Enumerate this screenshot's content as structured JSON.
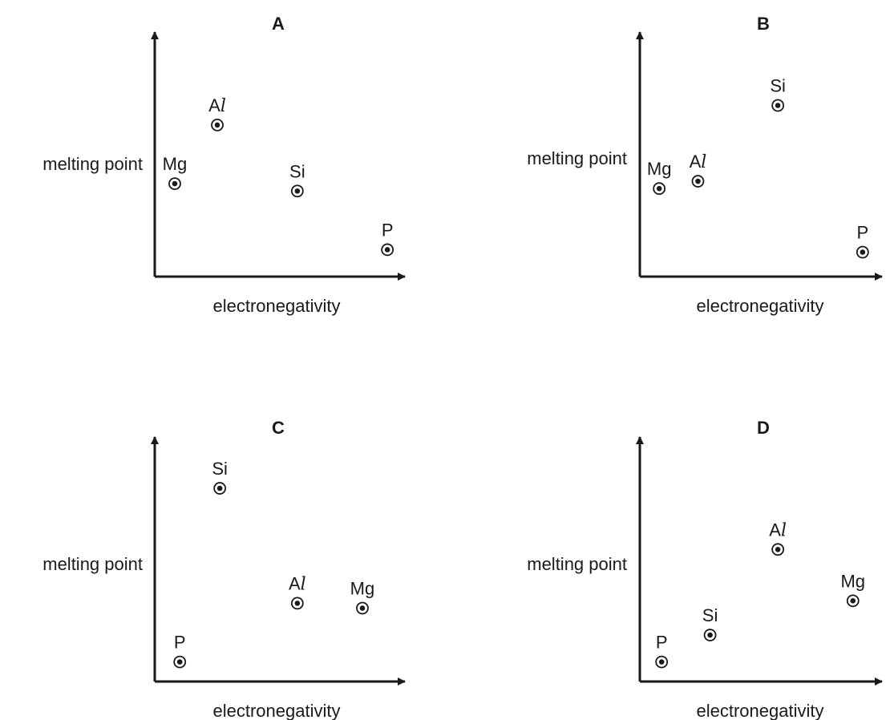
{
  "chart_data": [
    {
      "type": "scatter",
      "title": "A",
      "xlabel": "electronegativity",
      "ylabel": "melting point",
      "grid": false,
      "ticks": false,
      "points": [
        {
          "label": "Mg",
          "x": 0.08,
          "y": 0.38
        },
        {
          "label": "Al",
          "x": 0.25,
          "y": 0.62
        },
        {
          "label": "Si",
          "x": 0.57,
          "y": 0.35
        },
        {
          "label": "P",
          "x": 0.93,
          "y": 0.11
        }
      ]
    },
    {
      "type": "scatter",
      "title": "B",
      "xlabel": "electronegativity",
      "ylabel": "melting point",
      "grid": false,
      "ticks": false,
      "points": [
        {
          "label": "Mg",
          "x": 0.08,
          "y": 0.36
        },
        {
          "label": "Al",
          "x": 0.24,
          "y": 0.39
        },
        {
          "label": "Si",
          "x": 0.57,
          "y": 0.7
        },
        {
          "label": "P",
          "x": 0.92,
          "y": 0.1
        }
      ]
    },
    {
      "type": "scatter",
      "title": "C",
      "xlabel": "electronegativity",
      "ylabel": "melting point",
      "grid": false,
      "ticks": false,
      "points": [
        {
          "label": "Si",
          "x": 0.26,
          "y": 0.79
        },
        {
          "label": "Al",
          "x": 0.57,
          "y": 0.32
        },
        {
          "label": "Mg",
          "x": 0.83,
          "y": 0.3
        },
        {
          "label": "P",
          "x": 0.1,
          "y": 0.08
        }
      ]
    },
    {
      "type": "scatter",
      "title": "D",
      "xlabel": "electronegativity",
      "ylabel": "melting point",
      "grid": false,
      "ticks": false,
      "points": [
        {
          "label": "P",
          "x": 0.09,
          "y": 0.08
        },
        {
          "label": "Si",
          "x": 0.29,
          "y": 0.19
        },
        {
          "label": "Al",
          "x": 0.57,
          "y": 0.54
        },
        {
          "label": "Mg",
          "x": 0.88,
          "y": 0.33
        }
      ]
    }
  ]
}
